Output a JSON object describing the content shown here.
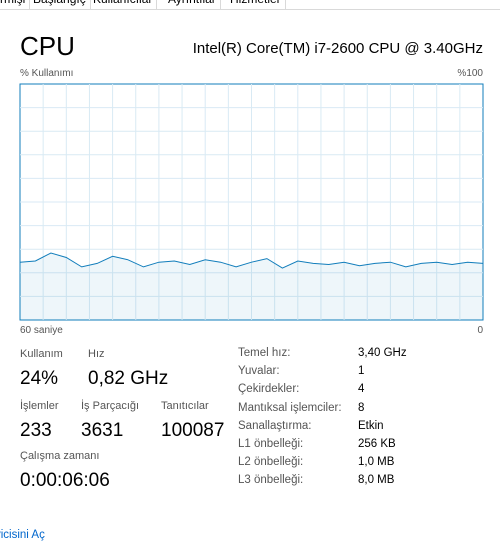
{
  "tabs": [
    "rmişi",
    "Başlangıç",
    "Kullanıcılar",
    "Ayrıntılar",
    "Hizmetler"
  ],
  "header": {
    "title": "CPU",
    "model": "Intel(R) Core(TM) i7-2600 CPU @ 3.40GHz"
  },
  "chart_data": {
    "type": "line",
    "y_label": "% Kullanımı",
    "x": [
      60,
      58,
      56,
      54,
      52,
      50,
      48,
      46,
      44,
      42,
      40,
      38,
      36,
      34,
      32,
      30,
      28,
      26,
      24,
      22,
      20,
      18,
      16,
      14,
      12,
      10,
      8,
      6,
      4,
      2,
      0
    ],
    "values": [
      24.5,
      25,
      28.4,
      26.5,
      22.5,
      24,
      27,
      25.5,
      22.5,
      24.5,
      25,
      23.5,
      25.5,
      24.5,
      22.5,
      24.5,
      26,
      22,
      25,
      24,
      23.5,
      24.5,
      23,
      24,
      24.5,
      22.5,
      24,
      24.5,
      23.5,
      24.5,
      24
    ],
    "color": "#117dbb",
    "xlim": [
      60,
      0
    ],
    "xticks": [
      {
        "value": 60,
        "label": "60 saniye"
      },
      0
    ],
    "ylim": [
      0,
      100
    ],
    "yticks": [
      {
        "value": 100,
        "label": "%100"
      }
    ],
    "grid": true
  },
  "stats": {
    "usage": {
      "label": "Kullanım",
      "value": "24%"
    },
    "speed": {
      "label": "Hız",
      "value": "0,82 GHz"
    },
    "processes": {
      "label": "İşlemler",
      "value": "233"
    },
    "threads": {
      "label": "İş Parçacığı",
      "value": "3631"
    },
    "handles": {
      "label": "Tanıtıcılar",
      "value": "100087"
    },
    "uptime": {
      "label": "Çalışma zamanı",
      "value": "0:00:06:06"
    }
  },
  "details": [
    [
      "Temel hız:",
      "3,40 GHz"
    ],
    [
      "Yuvalar:",
      "1"
    ],
    [
      "Çekirdekler:",
      "4"
    ],
    [
      "Mantıksal işlemciler:",
      "8"
    ],
    [
      "Sanallaştırma:",
      "Etkin"
    ],
    [
      "L1 önbelleği:",
      "256 KB"
    ],
    [
      "L2 önbelleği:",
      "1,0 MB"
    ],
    [
      "L3 önbelleği:",
      "8,0 MB"
    ]
  ],
  "footer_link": "yicisini Aç"
}
